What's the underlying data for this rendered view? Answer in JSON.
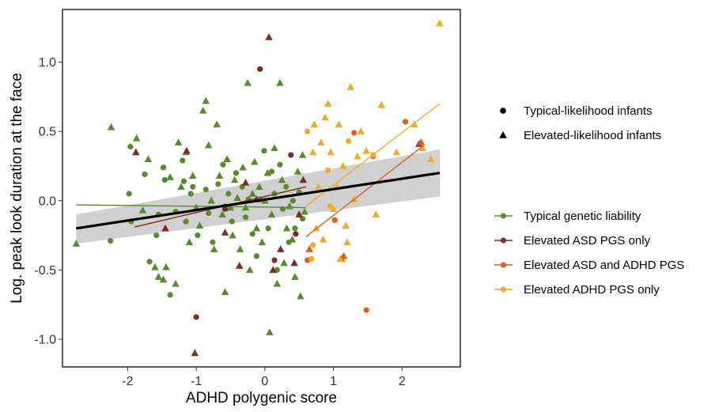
{
  "chart_data": {
    "type": "scatter",
    "xlabel": "ADHD polygenic score",
    "ylabel": "Log. peak look duration at the face",
    "xlim": [
      -2.95,
      2.85
    ],
    "ylim": [
      -1.2,
      1.38
    ],
    "xticks": [
      -2,
      -1,
      0,
      1,
      2
    ],
    "yticks": [
      -1.0,
      -0.5,
      0.0,
      0.5,
      1.0
    ],
    "xtick_labels": [
      "-2",
      "-1",
      "0",
      "1",
      "2"
    ],
    "ytick_labels": [
      "-1.0",
      "-0.5",
      "0.0",
      "0.5",
      "1.0"
    ],
    "grid": false,
    "legend_placement": "right",
    "shape_legend": [
      {
        "label": "Typical-likelihood infants",
        "shape": "circle"
      },
      {
        "label": "Elevated-likelihood infants",
        "shape": "triangle"
      }
    ],
    "colors": {
      "typical": "#5a8a2c",
      "asd": "#7b2e24",
      "both": "#e05e17",
      "adhd": "#efac2c",
      "overall": "#000000",
      "ci": "#c8c8c8"
    },
    "overall_fit": {
      "x": [
        -2.75,
        2.55
      ],
      "y": [
        -0.2,
        0.2
      ],
      "ci_upper": [
        -0.1,
        0.37
      ],
      "ci_lower": [
        -0.31,
        0.03
      ]
    },
    "series": [
      {
        "name": "Typical genetic liability",
        "group": "typical",
        "fit": {
          "x": [
            -2.75,
            0.6
          ],
          "y": [
            -0.03,
            -0.05
          ]
        },
        "circles": [
          [
            -2.25,
            -0.29
          ],
          [
            -1.98,
            0.05
          ],
          [
            -1.95,
            -0.15
          ],
          [
            -1.96,
            0.39
          ],
          [
            -1.75,
            0.19
          ],
          [
            -1.68,
            -0.44
          ],
          [
            -1.58,
            -0.25
          ],
          [
            -1.55,
            -0.1
          ],
          [
            -1.48,
            0.24
          ],
          [
            -1.46,
            0.15
          ],
          [
            -1.38,
            -0.68
          ],
          [
            -1.3,
            -0.08
          ],
          [
            -1.2,
            0.29
          ],
          [
            -1.18,
            0.14
          ],
          [
            -1.15,
            -0.15
          ],
          [
            -1.08,
            0.05
          ],
          [
            -1.05,
            0.1
          ],
          [
            -0.98,
            -0.25
          ],
          [
            -0.86,
            0.08
          ],
          [
            -0.82,
            -0.09
          ],
          [
            -0.76,
            -0.3
          ],
          [
            -0.68,
            0.12
          ],
          [
            -0.61,
            0.26
          ],
          [
            -0.58,
            -0.04
          ],
          [
            -0.53,
            0.05
          ],
          [
            -0.48,
            -0.15
          ],
          [
            -0.42,
            0.2
          ],
          [
            -0.33,
            0.1
          ],
          [
            -0.28,
            -0.12
          ],
          [
            -0.24,
            0.01
          ],
          [
            -0.18,
            -0.24
          ],
          [
            -0.12,
            -0.4
          ],
          [
            -0.07,
            0.01
          ],
          [
            -0.01,
            0.36
          ],
          [
            0.05,
            -0.2
          ],
          [
            0.1,
            0.21
          ],
          [
            0.14,
            0.05
          ],
          [
            0.18,
            -0.5
          ],
          [
            0.22,
            0.26
          ],
          [
            0.26,
            -0.06
          ],
          [
            0.31,
            0.1
          ],
          [
            0.35,
            -0.3
          ],
          [
            0.41,
            0.0
          ],
          [
            0.44,
            -0.2
          ],
          [
            0.5,
            0.06
          ],
          [
            0.55,
            -0.13
          ]
        ],
        "triangles": [
          [
            -2.75,
            -0.31
          ],
          [
            -2.24,
            0.53
          ],
          [
            -1.87,
            0.45
          ],
          [
            -1.78,
            -0.07
          ],
          [
            -1.7,
            0.3
          ],
          [
            -1.6,
            -0.48
          ],
          [
            -1.55,
            -0.55
          ],
          [
            -1.48,
            -0.57
          ],
          [
            -1.44,
            -0.48
          ],
          [
            -1.38,
            0.17
          ],
          [
            -1.3,
            -0.6
          ],
          [
            -1.26,
            0.42
          ],
          [
            -1.22,
            0.1
          ],
          [
            -1.15,
            0.35
          ],
          [
            -1.1,
            -0.3
          ],
          [
            -1.05,
            0.18
          ],
          [
            -1.0,
            -0.05
          ],
          [
            -0.95,
            -0.18
          ],
          [
            -0.9,
            0.65
          ],
          [
            -0.86,
            0.72
          ],
          [
            -0.82,
            0.4
          ],
          [
            -0.78,
            0.0
          ],
          [
            -0.74,
            -0.35
          ],
          [
            -0.7,
            0.55
          ],
          [
            -0.66,
            0.18
          ],
          [
            -0.62,
            -0.1
          ],
          [
            -0.58,
            -0.66
          ],
          [
            -0.55,
            0.3
          ],
          [
            -0.5,
            -0.05
          ],
          [
            -0.47,
            -0.25
          ],
          [
            -0.44,
            0.15
          ],
          [
            -0.4,
            0.02
          ],
          [
            -0.36,
            -0.35
          ],
          [
            -0.32,
            0.24
          ],
          [
            -0.28,
            -0.05
          ],
          [
            -0.25,
            0.85
          ],
          [
            -0.22,
            -0.5
          ],
          [
            -0.18,
            0.05
          ],
          [
            -0.15,
            0.28
          ],
          [
            -0.12,
            -0.2
          ],
          [
            -0.08,
            0.1
          ],
          [
            -0.04,
            -0.3
          ],
          [
            0.0,
            0.0
          ],
          [
            0.04,
            0.2
          ],
          [
            0.07,
            -0.95
          ],
          [
            0.1,
            -0.1
          ],
          [
            0.14,
            0.38
          ],
          [
            0.18,
            -0.6
          ],
          [
            0.22,
            0.85
          ],
          [
            0.25,
            0.15
          ],
          [
            0.28,
            -0.45
          ],
          [
            0.32,
            -0.2
          ],
          [
            0.36,
            -0.04
          ],
          [
            0.4,
            -0.28
          ],
          [
            0.44,
            -0.55
          ],
          [
            0.48,
            0.21
          ],
          [
            0.52,
            -0.69
          ],
          [
            0.55,
            0.33
          ],
          [
            0.58,
            -0.08
          ]
        ]
      },
      {
        "name": "Elevated ASD PGS only",
        "group": "asd",
        "fit": {
          "x": [
            -1.9,
            0.6
          ],
          "y": [
            -0.19,
            0.1
          ]
        },
        "circles": [
          [
            -1.0,
            -0.84
          ],
          [
            -0.58,
            -0.06
          ],
          [
            -0.07,
            0.95
          ],
          [
            0.14,
            -0.43
          ],
          [
            0.38,
            0.33
          ],
          [
            0.45,
            -0.24
          ]
        ],
        "triangles": [
          [
            -1.88,
            0.35
          ],
          [
            -1.45,
            -0.2
          ],
          [
            -1.14,
            0.36
          ],
          [
            -1.02,
            -1.1
          ],
          [
            -0.58,
            -0.23
          ],
          [
            -0.37,
            -0.47
          ],
          [
            -0.28,
            0.13
          ],
          [
            -0.12,
            0.01
          ],
          [
            0.06,
            1.18
          ],
          [
            0.12,
            -0.5
          ],
          [
            0.23,
            -0.35
          ],
          [
            0.43,
            -0.45
          ],
          [
            0.5,
            -0.1
          ],
          [
            0.56,
            0.15
          ],
          [
            2.25,
            0.41
          ]
        ]
      },
      {
        "name": "Elevated ASD and ADHD PGS",
        "group": "both",
        "fit": {
          "x": [
            0.6,
            2.32
          ],
          "y": [
            -0.26,
            0.4
          ]
        },
        "circles": [
          [
            0.62,
            -0.43
          ],
          [
            1.02,
            -0.14
          ],
          [
            1.3,
            0.49
          ],
          [
            1.48,
            -0.79
          ],
          [
            1.58,
            0.32
          ],
          [
            2.05,
            0.57
          ]
        ],
        "triangles": [
          [
            0.65,
            -0.35
          ],
          [
            1.12,
            -0.42
          ],
          [
            1.15,
            -0.4
          ],
          [
            2.28,
            0.42
          ]
        ]
      },
      {
        "name": "Elevated ADHD PGS only",
        "group": "adhd",
        "fit": {
          "x": [
            0.6,
            2.55
          ],
          "y": [
            -0.04,
            0.7
          ]
        },
        "circles": [
          [
            0.62,
            0.5
          ],
          [
            0.68,
            -0.42
          ],
          [
            0.7,
            -0.32
          ],
          [
            0.92,
            0.22
          ],
          [
            0.95,
            -0.04
          ],
          [
            1.22,
            0.43
          ],
          [
            1.58,
            0.33
          ]
        ],
        "triangles": [
          [
            0.7,
            0.35
          ],
          [
            0.72,
            0.55
          ],
          [
            0.75,
            -0.2
          ],
          [
            0.78,
            0.1
          ],
          [
            0.82,
            0.42
          ],
          [
            0.85,
            -0.28
          ],
          [
            0.88,
            0.6
          ],
          [
            0.92,
            0.7
          ],
          [
            0.96,
            0.35
          ],
          [
            1.0,
            -0.06
          ],
          [
            1.05,
            0.1
          ],
          [
            1.08,
            0.55
          ],
          [
            1.1,
            -0.42
          ],
          [
            1.14,
            0.25
          ],
          [
            1.18,
            -0.18
          ],
          [
            1.2,
            -0.3
          ],
          [
            1.25,
            0.82
          ],
          [
            1.3,
            0.01
          ],
          [
            1.35,
            0.32
          ],
          [
            1.4,
            0.5
          ],
          [
            1.48,
            0.36
          ],
          [
            1.62,
            -0.1
          ],
          [
            1.7,
            0.69
          ],
          [
            1.92,
            0.35
          ],
          [
            2.18,
            0.55
          ],
          [
            2.3,
            0.38
          ],
          [
            2.42,
            0.3
          ],
          [
            2.55,
            1.28
          ]
        ]
      }
    ]
  }
}
